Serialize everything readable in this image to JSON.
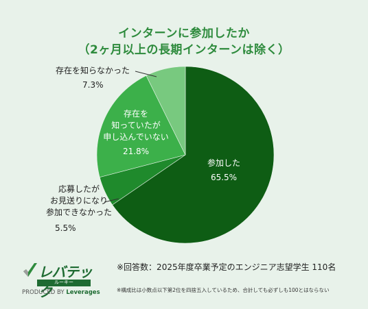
{
  "title_line1": "インターンに参加したか",
  "title_line2": "（2ヶ月以上の長期インターンは除く）",
  "colors": {
    "title": "#2e8b3d",
    "bg": "#e8f2ea"
  },
  "chart_data": {
    "type": "pie",
    "unit": "%",
    "slices": [
      {
        "label": "参加した",
        "value": 65.5,
        "value_text": "65.5%",
        "color": "#0e5d14"
      },
      {
        "label": "応募したがお見送りになり参加できなかった",
        "value": 5.5,
        "value_text": "5.5%",
        "color": "#1f8a2c"
      },
      {
        "label": "存在を知っていたが申し込んでいない",
        "value": 21.8,
        "value_text": "21.8%",
        "color": "#3cb04a"
      },
      {
        "label": "存在を知らなかった",
        "value": 7.3,
        "value_text": "7.3%",
        "color": "#78c97f"
      }
    ]
  },
  "labels": {
    "joined_1": "参加した",
    "applied_1": "応募したが",
    "applied_2": "お見送りになり",
    "applied_3": "参加できなかった",
    "knew_1": "存在を",
    "knew_2": "知っていたが",
    "knew_3": "申し込んでいない",
    "unknown_1": "存在を知らなかった"
  },
  "footer": {
    "note": "※回答数：2025年度卒業予定のエンジニア志望学生 110名",
    "small": "※構成比は小数点以下第2位を四捨五入しているため、合計しても必ずしも100とはならない"
  },
  "logo": {
    "main": "レバテック",
    "sub": "ルーキー",
    "produced": "PRODUCED BY",
    "brand": "Leverages"
  }
}
